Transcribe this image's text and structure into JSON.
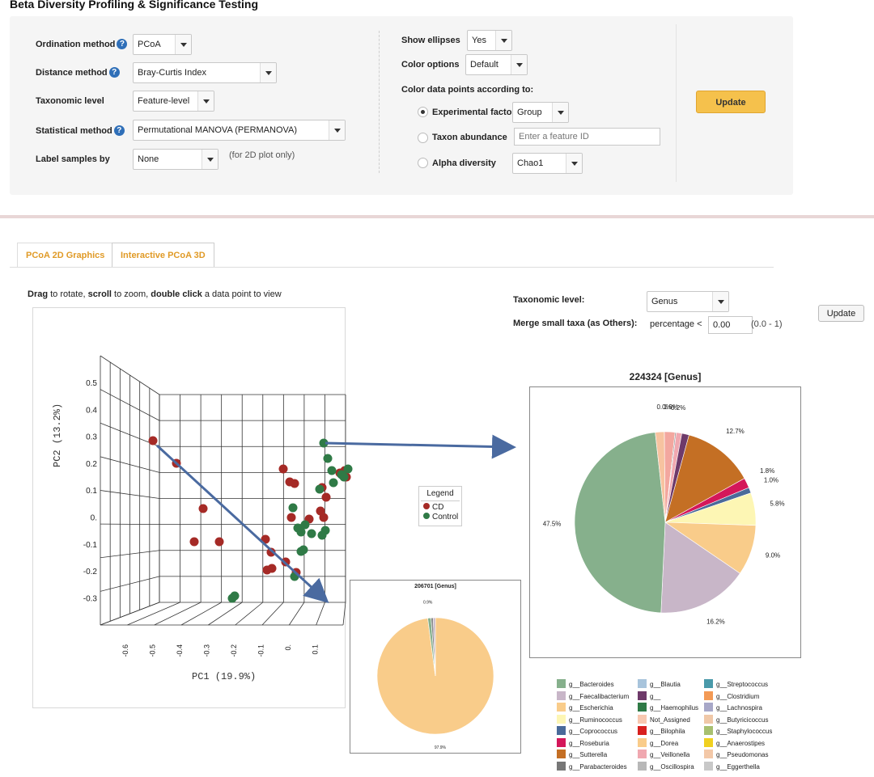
{
  "title": "Beta Diversity Profiling & Significance Testing",
  "form": {
    "ordination_label": "Ordination method",
    "ordination_value": "PCoA",
    "distance_label": "Distance method",
    "distance_value": "Bray-Curtis Index",
    "taxonomic_label": "Taxonomic level",
    "taxonomic_value": "Feature-level",
    "statistical_label": "Statistical method",
    "statistical_value": "Permutational MANOVA (PERMANOVA)",
    "label_samples_label": "Label samples by",
    "label_samples_value": "None",
    "label_samples_note": "(for 2D plot only)",
    "show_ellipses_label": "Show ellipses",
    "show_ellipses_value": "Yes",
    "color_options_label": "Color options",
    "color_options_value": "Default",
    "color_points_label": "Color data points according to:",
    "exp_factor_label": "Experimental factor",
    "exp_factor_value": "Group",
    "taxon_abundance_label": "Taxon abundance",
    "taxon_abundance_placeholder": "Enter a feature ID",
    "alpha_diversity_label": "Alpha diversity",
    "alpha_diversity_value": "Chao1",
    "help_glyph": "?",
    "update_label": "Update"
  },
  "tabs": [
    {
      "label": "PCoA 2D Graphics"
    },
    {
      "label": "Interactive PCoA 3D"
    }
  ],
  "instructions": {
    "drag": "Drag",
    "t1": " to rotate, ",
    "scroll": "scroll",
    "t2": " to zoom, ",
    "dbl": "double click",
    "t3": " a data point to view"
  },
  "controls": {
    "tax_level_label": "Taxonomic level:",
    "tax_level_value": "Genus",
    "merge_label": "Merge small taxa (as Others):",
    "percentage_label": "percentage <",
    "percentage_value": "0.00",
    "range_note": "(0.0 - 1)",
    "update_label": "Update"
  },
  "plot3d": {
    "pc1_label": "PC1 (19.9%)",
    "pc2_label": "PC2 (13.2%)",
    "y_ticks": [
      "0.5",
      "0.4",
      "0.3",
      "0.2",
      "0.1",
      "0.",
      "-0.1",
      "-0.2",
      "-0.3"
    ],
    "x_ticks": [
      "-0.6",
      "-0.5",
      "-0.4",
      "-0.3",
      "-0.2",
      "-0.1",
      "0.",
      "0.1"
    ],
    "legend_title": "Legend",
    "legend_items": [
      {
        "label": "CD",
        "color": "#a52a26"
      },
      {
        "label": "Control",
        "color": "#2f7a46"
      }
    ]
  },
  "chart_data": [
    {
      "type": "pie",
      "title": "224324 [Genus]",
      "slices": [
        {
          "value": 0.0,
          "label": "0.0%",
          "color": "#f2c7a6"
        },
        {
          "value": 1.9,
          "label": "1.9%",
          "color": "#f3a79f"
        },
        {
          "value": 0.2,
          "label": "0.2%",
          "color": "#888888"
        },
        {
          "value": 1.0,
          "label": "",
          "color": "#f0a8b0"
        },
        {
          "value": 1.3,
          "label": "",
          "color": "#6e3a6a"
        },
        {
          "value": 12.7,
          "label": "12.7%",
          "color": "#c46f24"
        },
        {
          "value": 1.8,
          "label": "1.8%",
          "color": "#d4175a"
        },
        {
          "value": 1.0,
          "label": "1.0%",
          "color": "#4a6a9a"
        },
        {
          "value": 5.8,
          "label": "5.8%",
          "color": "#fdf6b4"
        },
        {
          "value": 9.0,
          "label": "9.0%",
          "color": "#f9cc8a"
        },
        {
          "value": 16.2,
          "label": "16.2%",
          "color": "#c8b6c8"
        },
        {
          "value": 47.5,
          "label": "47.5%",
          "color": "#86b08c"
        },
        {
          "value": 1.6,
          "label": "",
          "color": "#f7c3a0"
        }
      ]
    },
    {
      "type": "pie",
      "title": "206701 [Genus]",
      "slices": [
        {
          "value": 97.9,
          "label": "97.9%",
          "color": "#f9cc8a"
        },
        {
          "value": 0.9,
          "label": "0.9%",
          "color": "#86b08c"
        },
        {
          "value": 0.6,
          "label": "",
          "color": "#888888"
        },
        {
          "value": 0.6,
          "label": "",
          "color": "#c8b6c8"
        }
      ]
    }
  ],
  "genus_legend": [
    {
      "label": "g__Bacteroides",
      "color": "#86b08c"
    },
    {
      "label": "g__Faecalibacterium",
      "color": "#c8b6c8"
    },
    {
      "label": "g__Escherichia",
      "color": "#f9cc8a"
    },
    {
      "label": "g__Ruminococcus",
      "color": "#fdf6b4"
    },
    {
      "label": "g__Coprococcus",
      "color": "#4a6a9a"
    },
    {
      "label": "g__Roseburia",
      "color": "#d4175a"
    },
    {
      "label": "g__Sutterella",
      "color": "#c46f24"
    },
    {
      "label": "g__Parabacteroides",
      "color": "#777777"
    },
    {
      "label": "g__Blautia",
      "color": "#a8c4dc"
    },
    {
      "label": "g__",
      "color": "#6e3a6a"
    },
    {
      "label": "g__Haemophilus",
      "color": "#2f7a46"
    },
    {
      "label": "Not_Assigned",
      "color": "#f8c8b0"
    },
    {
      "label": "g__Bilophila",
      "color": "#d8201e"
    },
    {
      "label": "g__Dorea",
      "color": "#f9cc8a"
    },
    {
      "label": "g__Veillonella",
      "color": "#f0a8b0"
    },
    {
      "label": "g__Oscillospira",
      "color": "#b8b8b8"
    },
    {
      "label": "g__Streptococcus",
      "color": "#4a9aaa"
    },
    {
      "label": "g__Clostridium",
      "color": "#f39a55"
    },
    {
      "label": "g__Lachnospira",
      "color": "#a8a8c8"
    },
    {
      "label": "g__Butyricicoccus",
      "color": "#f0c8a8"
    },
    {
      "label": "g__Staphylococcus",
      "color": "#a8c070"
    },
    {
      "label": "g__Anaerostipes",
      "color": "#f0d020"
    },
    {
      "label": "g__Pseudomonas",
      "color": "#f3c8a8"
    },
    {
      "label": "g__Eggerthella",
      "color": "#c8c8c8"
    }
  ]
}
